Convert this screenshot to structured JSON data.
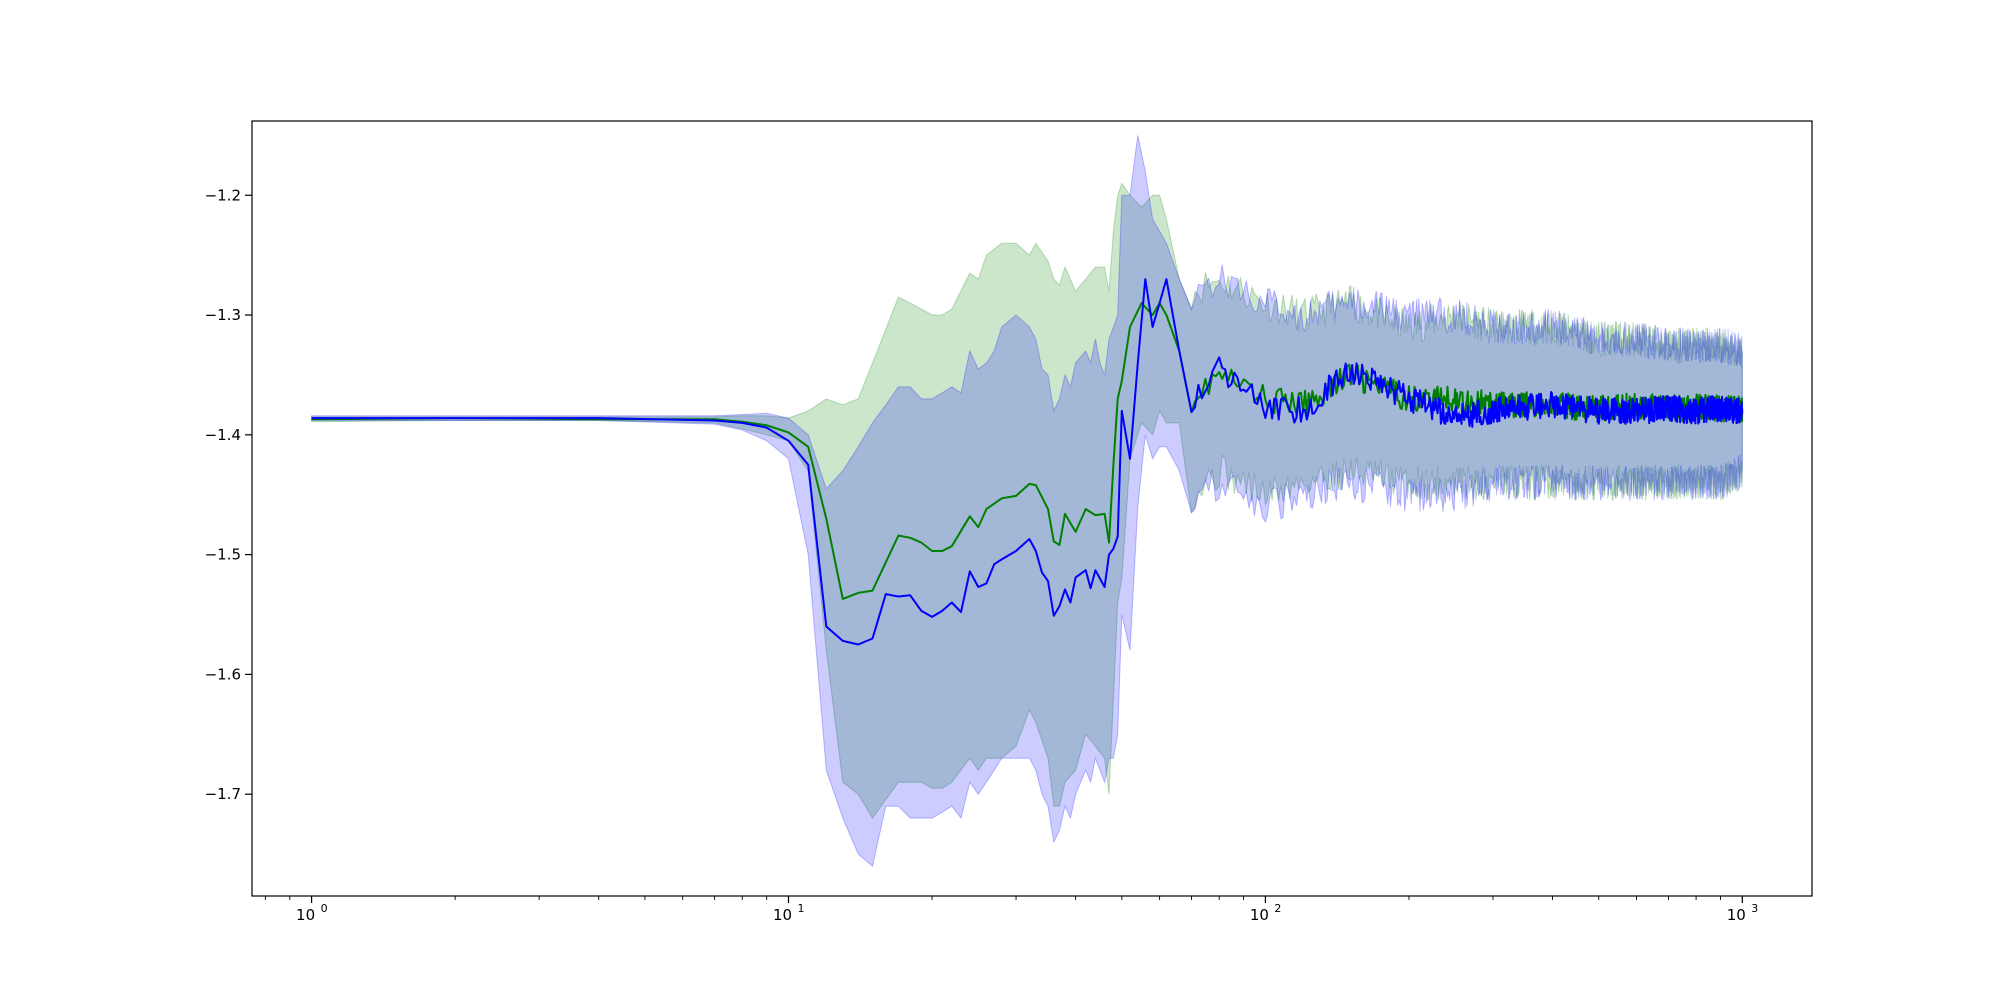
{
  "chart_data": {
    "type": "line",
    "title": "",
    "xlabel": "",
    "ylabel": "",
    "xscale": "log",
    "xlim": [
      0.75,
      1400
    ],
    "ylim": [
      -1.785,
      -1.138
    ],
    "grid": false,
    "legend": "none",
    "x_ticks": [
      {
        "base": "10",
        "exp": "0",
        "value": 1
      },
      {
        "base": "10",
        "exp": "1",
        "value": 10
      },
      {
        "base": "10",
        "exp": "2",
        "value": 100
      },
      {
        "base": "10",
        "exp": "3",
        "value": 1000
      }
    ],
    "y_ticks": [
      {
        "label": "−1.2",
        "value": -1.2
      },
      {
        "label": "−1.3",
        "value": -1.3
      },
      {
        "label": "−1.4",
        "value": -1.4
      },
      {
        "label": "−1.5",
        "value": -1.5
      },
      {
        "label": "−1.6",
        "value": -1.6
      },
      {
        "label": "−1.7",
        "value": -1.7
      }
    ],
    "series": [
      {
        "color": "#008000",
        "band_color": "#008000",
        "band_opacity": 0.2,
        "x": [
          1,
          2,
          4,
          7,
          8,
          9,
          10,
          11,
          12,
          13,
          14,
          15,
          17,
          18,
          19,
          20,
          21,
          22,
          24,
          25,
          26,
          28,
          30,
          32,
          33,
          35,
          36,
          37,
          38,
          40,
          42,
          44,
          46,
          47,
          48,
          49,
          50,
          52,
          55,
          58,
          60,
          62,
          66,
          70,
          80,
          90,
          100,
          120,
          150,
          200,
          250,
          300,
          400,
          500,
          600,
          700,
          800,
          900,
          1000
        ],
        "mean": [
          -1.387,
          -1.386,
          -1.387,
          -1.387,
          -1.389,
          -1.392,
          -1.398,
          -1.41,
          -1.47,
          -1.537,
          -1.532,
          -1.53,
          -1.484,
          -1.486,
          -1.49,
          -1.497,
          -1.497,
          -1.493,
          -1.468,
          -1.477,
          -1.462,
          -1.453,
          -1.451,
          -1.441,
          -1.442,
          -1.462,
          -1.489,
          -1.492,
          -1.466,
          -1.481,
          -1.462,
          -1.467,
          -1.466,
          -1.49,
          -1.425,
          -1.37,
          -1.355,
          -1.31,
          -1.29,
          -1.3,
          -1.29,
          -1.3,
          -1.33,
          -1.37,
          -1.35,
          -1.36,
          -1.37,
          -1.375,
          -1.35,
          -1.37,
          -1.37,
          -1.375,
          -1.375,
          -1.378,
          -1.376,
          -1.378,
          -1.377,
          -1.378,
          -1.378
        ],
        "upper": [
          -1.385,
          -1.385,
          -1.385,
          -1.385,
          -1.384,
          -1.384,
          -1.386,
          -1.38,
          -1.37,
          -1.375,
          -1.37,
          -1.34,
          -1.285,
          -1.29,
          -1.295,
          -1.3,
          -1.3,
          -1.295,
          -1.265,
          -1.27,
          -1.25,
          -1.24,
          -1.24,
          -1.25,
          -1.24,
          -1.255,
          -1.27,
          -1.275,
          -1.26,
          -1.28,
          -1.27,
          -1.26,
          -1.26,
          -1.28,
          -1.23,
          -1.2,
          -1.19,
          -1.2,
          -1.21,
          -1.2,
          -1.2,
          -1.22,
          -1.27,
          -1.28,
          -1.27,
          -1.28,
          -1.29,
          -1.3,
          -1.29,
          -1.31,
          -1.3,
          -1.31,
          -1.31,
          -1.32,
          -1.32,
          -1.325,
          -1.325,
          -1.325,
          -1.33
        ],
        "lower": [
          -1.389,
          -1.388,
          -1.388,
          -1.39,
          -1.395,
          -1.4,
          -1.405,
          -1.43,
          -1.58,
          -1.69,
          -1.7,
          -1.72,
          -1.69,
          -1.69,
          -1.69,
          -1.695,
          -1.695,
          -1.69,
          -1.67,
          -1.68,
          -1.67,
          -1.67,
          -1.66,
          -1.63,
          -1.64,
          -1.67,
          -1.71,
          -1.71,
          -1.69,
          -1.68,
          -1.65,
          -1.66,
          -1.67,
          -1.7,
          -1.62,
          -1.54,
          -1.52,
          -1.42,
          -1.39,
          -1.4,
          -1.38,
          -1.39,
          -1.39,
          -1.45,
          -1.43,
          -1.44,
          -1.45,
          -1.44,
          -1.43,
          -1.44,
          -1.44,
          -1.44,
          -1.44,
          -1.44,
          -1.44,
          -1.44,
          -1.44,
          -1.44,
          -1.43
        ]
      },
      {
        "color": "#0000ff",
        "band_color": "#0000ff",
        "band_opacity": 0.2,
        "x": [
          1,
          2,
          4,
          7,
          8,
          9,
          10,
          11,
          12,
          13,
          14,
          15,
          16,
          17,
          18,
          19,
          20,
          21,
          22,
          23,
          24,
          25,
          26,
          27,
          28,
          30,
          32,
          33,
          34,
          35,
          36,
          37,
          38,
          39,
          40,
          42,
          43,
          44,
          45,
          46,
          47,
          48,
          49,
          50,
          52,
          54,
          56,
          58,
          60,
          62,
          66,
          70,
          80,
          90,
          100,
          120,
          150,
          200,
          250,
          300,
          400,
          500,
          600,
          700,
          800,
          900,
          1000
        ],
        "mean": [
          -1.386,
          -1.386,
          -1.386,
          -1.388,
          -1.39,
          -1.394,
          -1.405,
          -1.425,
          -1.56,
          -1.572,
          -1.575,
          -1.57,
          -1.533,
          -1.535,
          -1.534,
          -1.547,
          -1.552,
          -1.547,
          -1.54,
          -1.548,
          -1.514,
          -1.527,
          -1.524,
          -1.508,
          -1.504,
          -1.497,
          -1.487,
          -1.497,
          -1.515,
          -1.522,
          -1.551,
          -1.543,
          -1.529,
          -1.54,
          -1.519,
          -1.513,
          -1.528,
          -1.513,
          -1.52,
          -1.527,
          -1.5,
          -1.495,
          -1.485,
          -1.38,
          -1.42,
          -1.34,
          -1.27,
          -1.31,
          -1.29,
          -1.27,
          -1.33,
          -1.37,
          -1.345,
          -1.36,
          -1.375,
          -1.38,
          -1.345,
          -1.37,
          -1.385,
          -1.38,
          -1.375,
          -1.38,
          -1.38,
          -1.378,
          -1.38,
          -1.378,
          -1.38
        ],
        "upper": [
          -1.384,
          -1.384,
          -1.384,
          -1.384,
          -1.383,
          -1.382,
          -1.386,
          -1.4,
          -1.445,
          -1.43,
          -1.41,
          -1.39,
          -1.375,
          -1.36,
          -1.36,
          -1.37,
          -1.37,
          -1.365,
          -1.36,
          -1.365,
          -1.33,
          -1.345,
          -1.34,
          -1.33,
          -1.31,
          -1.3,
          -1.31,
          -1.32,
          -1.345,
          -1.35,
          -1.38,
          -1.37,
          -1.35,
          -1.36,
          -1.34,
          -1.33,
          -1.34,
          -1.32,
          -1.34,
          -1.35,
          -1.32,
          -1.31,
          -1.3,
          -1.2,
          -1.2,
          -1.15,
          -1.18,
          -1.22,
          -1.23,
          -1.24,
          -1.27,
          -1.28,
          -1.27,
          -1.28,
          -1.29,
          -1.3,
          -1.29,
          -1.3,
          -1.3,
          -1.31,
          -1.31,
          -1.32,
          -1.32,
          -1.325,
          -1.325,
          -1.325,
          -1.33
        ],
        "lower": [
          -1.388,
          -1.388,
          -1.388,
          -1.391,
          -1.396,
          -1.405,
          -1.42,
          -1.5,
          -1.68,
          -1.72,
          -1.75,
          -1.76,
          -1.71,
          -1.71,
          -1.72,
          -1.72,
          -1.72,
          -1.715,
          -1.71,
          -1.72,
          -1.69,
          -1.7,
          -1.69,
          -1.68,
          -1.67,
          -1.67,
          -1.67,
          -1.68,
          -1.7,
          -1.71,
          -1.74,
          -1.73,
          -1.71,
          -1.72,
          -1.7,
          -1.68,
          -1.69,
          -1.67,
          -1.68,
          -1.69,
          -1.67,
          -1.67,
          -1.65,
          -1.55,
          -1.58,
          -1.46,
          -1.4,
          -1.42,
          -1.41,
          -1.41,
          -1.43,
          -1.45,
          -1.44,
          -1.45,
          -1.46,
          -1.45,
          -1.44,
          -1.45,
          -1.45,
          -1.44,
          -1.44,
          -1.44,
          -1.44,
          -1.44,
          -1.44,
          -1.44,
          -1.43
        ]
      }
    ]
  }
}
